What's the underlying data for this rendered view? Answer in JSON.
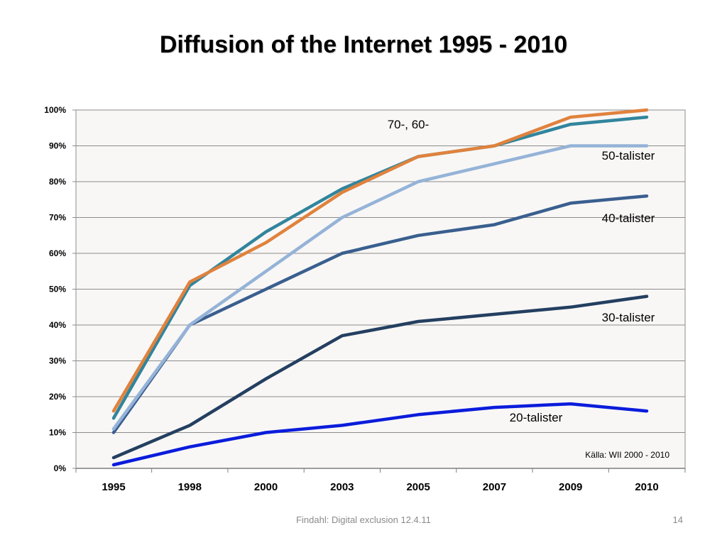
{
  "slide": {
    "title": "Diffusion of the Internet 1995 - 2010",
    "footer": "Findahl: Digital exclusion 12.4.11",
    "page_number": "14"
  },
  "chart_data": {
    "type": "line",
    "title": "",
    "xlabel": "",
    "ylabel": "",
    "categories": [
      "1995",
      "1998",
      "2000",
      "2003",
      "2005",
      "2007",
      "2009",
      "2010"
    ],
    "y_tick_labels": [
      "0%",
      "10%",
      "20%",
      "30%",
      "40%",
      "50%",
      "60%",
      "70%",
      "80%",
      "90%",
      "100%"
    ],
    "ylim": [
      0,
      100
    ],
    "y_unit": "%",
    "grid": "horizontal",
    "plot_background": "#f8f7f6",
    "gridline_color": "#8c8c8c",
    "series": [
      {
        "label_text": "20-talister",
        "color": "#0a1cdb",
        "values": [
          1,
          6,
          10,
          12,
          15,
          17,
          18,
          16
        ]
      },
      {
        "label_text": "30-talister",
        "color": "#243f60",
        "values": [
          3,
          12,
          25,
          37,
          41,
          43,
          45,
          48
        ]
      },
      {
        "label_text": "40-talister",
        "color": "#3a5f8f",
        "values": [
          10,
          40,
          50,
          60,
          65,
          68,
          74,
          76
        ]
      },
      {
        "label_text": "50-talister",
        "color": "#95b3d7",
        "values": [
          11,
          40,
          55,
          70,
          80,
          85,
          90,
          90
        ]
      },
      {
        "label_text": "",
        "color": "#31859c",
        "values": [
          14,
          51,
          66,
          78,
          87,
          90,
          96,
          98
        ]
      },
      {
        "label_text": "",
        "color": "#e0823d",
        "values": [
          16,
          52,
          63,
          77,
          87,
          90,
          98,
          100
        ]
      }
    ],
    "combined_label": "70-, 60-",
    "source_note": "Källa: WII 2000 - 2010"
  }
}
